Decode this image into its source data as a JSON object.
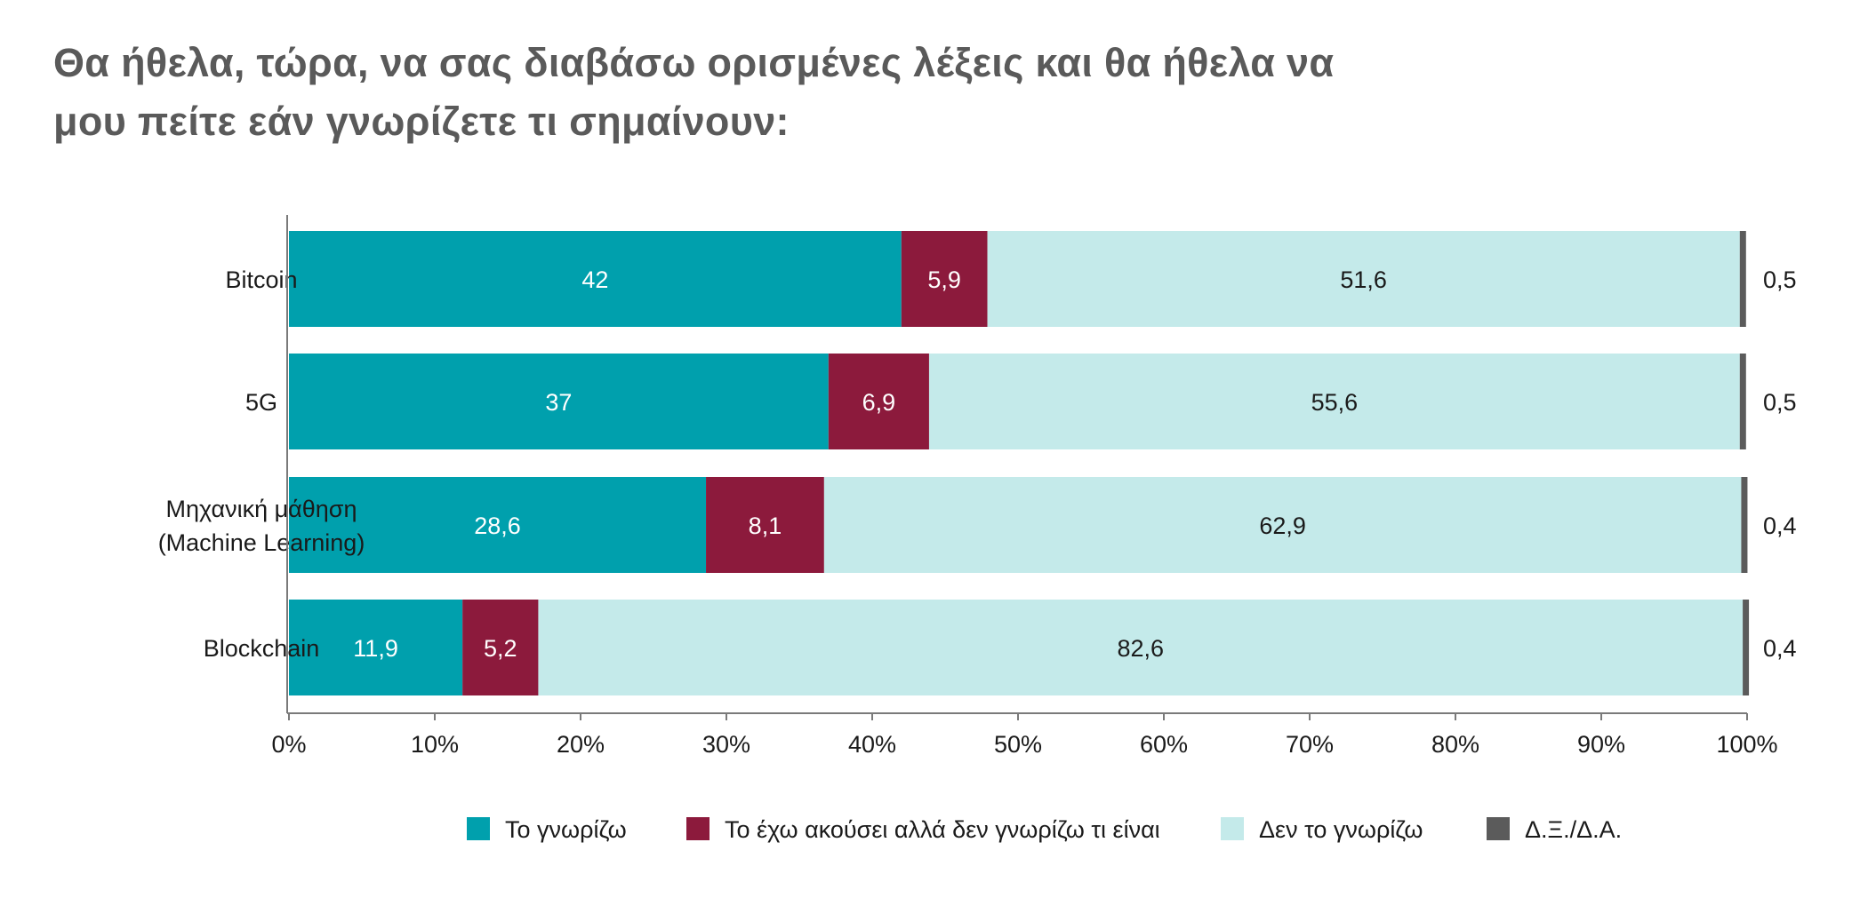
{
  "title": {
    "line1": "Θα ήθελα, τώρα, να σας διαβάσω ορισμένες λέξεις και θα ήθελα να",
    "line2": "μου πείτε εάν γνωρίζετε τι σημαίνουν:"
  },
  "colors": {
    "know": "#00a0ad",
    "heard": "#8c1a3c",
    "dont_know": "#c4eaea",
    "dk_na": "#5b5b5b",
    "axis": "#7a7a7a",
    "text": "#1a1a1a"
  },
  "chart_data": {
    "type": "bar",
    "orientation": "horizontal",
    "stacked": true,
    "categories": [
      [
        "Bitcoin"
      ],
      [
        "5G"
      ],
      [
        "Μηχανική μάθηση",
        "(Machine Learning)"
      ],
      [
        "Blockchain"
      ]
    ],
    "series": [
      {
        "name": "Το γνωρίζω",
        "color": "#00a0ad",
        "values": [
          42,
          37,
          28.6,
          11.9
        ],
        "labels": [
          "42",
          "37",
          "28,6",
          "11,9"
        ]
      },
      {
        "name": "Το έχω ακούσει αλλά δεν γνωρίζω τι είναι",
        "color": "#8c1a3c",
        "values": [
          5.9,
          6.9,
          8.1,
          5.2
        ],
        "labels": [
          "5,9",
          "6,9",
          "8,1",
          "5,2"
        ]
      },
      {
        "name": "Δεν το γνωρίζω",
        "color": "#c4eaea",
        "values": [
          51.6,
          55.6,
          62.9,
          82.6
        ],
        "labels": [
          "51,6",
          "55,6",
          "62,9",
          "82,6"
        ]
      },
      {
        "name": "Δ.Ξ./Δ.Α.",
        "color": "#5b5b5b",
        "values": [
          0.5,
          0.5,
          0.4,
          0.4
        ],
        "labels": [
          "0,5",
          "0,5",
          "0,4",
          "0,4"
        ]
      }
    ],
    "xlim": [
      0,
      100
    ],
    "xticks": [
      "0%",
      "10%",
      "20%",
      "30%",
      "40%",
      "50%",
      "60%",
      "70%",
      "80%",
      "90%",
      "100%"
    ],
    "legend": "bottom",
    "grid": false
  }
}
